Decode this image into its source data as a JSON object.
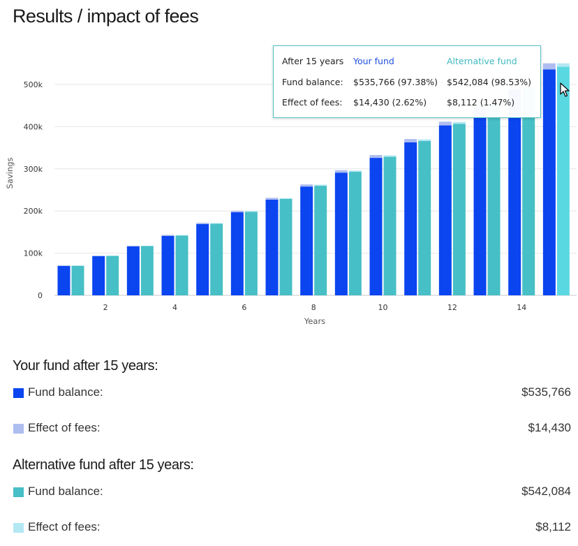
{
  "page": {
    "title": "Results / impact of fees"
  },
  "colors": {
    "your_fund_balance": "#0a45f0",
    "your_fund_fees": "#aebdf0",
    "alt_fund_balance": "#47bfc6",
    "alt_fund_fees": "#b3e8f3",
    "highlight_bar": "#5ad8e2"
  },
  "chart_data": {
    "type": "bar",
    "stacked": true,
    "xlabel": "Years",
    "ylabel": "Savings",
    "x": [
      1,
      2,
      3,
      4,
      5,
      6,
      7,
      8,
      9,
      10,
      11,
      12,
      13,
      14,
      15
    ],
    "x_ticks": [
      "2",
      "4",
      "6",
      "8",
      "10",
      "12",
      "14"
    ],
    "y_ticks": [
      "0",
      "100k",
      "200k",
      "300k",
      "400k",
      "500k"
    ],
    "ylim": [
      0,
      560000
    ],
    "grid": true,
    "series": [
      {
        "name": "Your fund",
        "stack": "your",
        "balance": [
          70000,
          93000,
          116000,
          141000,
          169000,
          197000,
          227000,
          258000,
          291000,
          326000,
          363000,
          403000,
          443000,
          488000,
          535766
        ],
        "fees": [
          700,
          1200,
          1800,
          2400,
          3000,
          3600,
          4300,
          5000,
          5800,
          6700,
          7700,
          8800,
          10100,
          12000,
          14430
        ]
      },
      {
        "name": "Alternative fund",
        "stack": "alt",
        "balance": [
          70200,
          93500,
          116800,
          141800,
          170000,
          198200,
          228500,
          259800,
          293000,
          328500,
          366000,
          406500,
          447000,
          493000,
          542084
        ],
        "fees": [
          400,
          600,
          900,
          1200,
          1500,
          1800,
          2200,
          2600,
          3000,
          3500,
          4000,
          4700,
          5500,
          6500,
          8112
        ]
      }
    ],
    "highlighted_x": 15
  },
  "tooltip": {
    "header": "After 15 years",
    "your_fund": "Your fund",
    "alt_fund": "Alternative fund",
    "balance_label": "Fund balance:",
    "fees_label": "Effect of fees:",
    "your_balance": "$535,766 (97.38%)",
    "alt_balance": "$542,084 (98.53%)",
    "your_fees": "$14,430 (2.62%)",
    "alt_fees": "$8,112 (1.47%)"
  },
  "summary": {
    "your_heading": "Your fund after 15 years:",
    "alt_heading": "Alternative fund after 15 years:",
    "balance_label": "Fund balance:",
    "fees_label": "Effect of fees:",
    "your_balance": "$535,766",
    "your_fees": "$14,430",
    "alt_balance": "$542,084",
    "alt_fees": "$8,112"
  }
}
